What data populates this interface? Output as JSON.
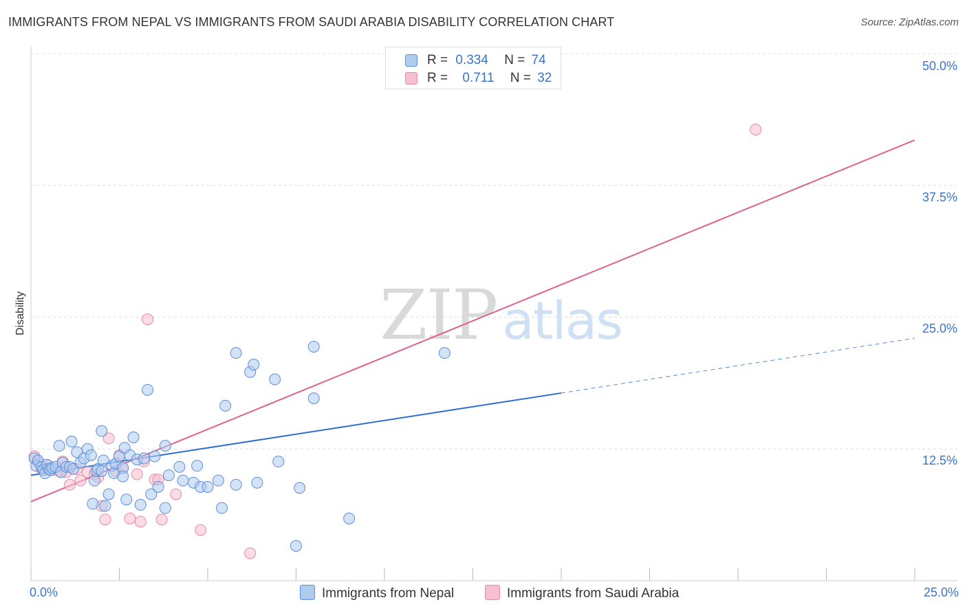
{
  "title": "IMMIGRANTS FROM NEPAL VS IMMIGRANTS FROM SAUDI ARABIA DISABILITY CORRELATION CHART",
  "source": "Source: ZipAtlas.com",
  "watermark": {
    "zip": "ZIP",
    "atlas": "atlas"
  },
  "legend": {
    "nepal": {
      "r_label": "R =",
      "r_value": "0.334",
      "n_label": "N =",
      "n_value": "74"
    },
    "saudi": {
      "r_label": "R =",
      "r_value": "0.711",
      "n_label": "N =",
      "n_value": "32"
    }
  },
  "colors": {
    "nepal_fill": "#aecbf0",
    "nepal_stroke": "#5b8fd6",
    "nepal_line": "#2a6fcf",
    "saudi_fill": "#f7c0d0",
    "saudi_stroke": "#e68aa6",
    "saudi_line": "#e0628c",
    "grid": "#dddddd",
    "tick_text": "#3a74c9"
  },
  "chart_data": {
    "type": "scatter",
    "title": "IMMIGRANTS FROM NEPAL VS IMMIGRANTS FROM SAUDI ARABIA DISABILITY CORRELATION CHART",
    "xlabel": "",
    "ylabel": "Disability",
    "xlim": [
      0,
      25
    ],
    "ylim": [
      0,
      50
    ],
    "x_tick_labels": [
      "0.0%",
      "25.0%"
    ],
    "y_ticks": [
      12.5,
      25.0,
      37.5,
      50.0
    ],
    "y_tick_labels": [
      "12.5%",
      "25.0%",
      "37.5%",
      "50.0%"
    ],
    "grid": "horizontal dashed",
    "legend_position": "bottom",
    "series": [
      {
        "name": "Immigrants from Nepal",
        "points": [
          [
            0.1,
            11.6
          ],
          [
            0.15,
            10.9
          ],
          [
            0.2,
            11.4
          ],
          [
            0.3,
            10.8
          ],
          [
            0.35,
            10.5
          ],
          [
            0.4,
            10.2
          ],
          [
            0.45,
            11.0
          ],
          [
            0.5,
            10.6
          ],
          [
            0.55,
            10.5
          ],
          [
            0.6,
            10.7
          ],
          [
            0.7,
            10.8
          ],
          [
            0.8,
            12.8
          ],
          [
            0.85,
            10.3
          ],
          [
            0.9,
            11.2
          ],
          [
            1.0,
            10.8
          ],
          [
            1.1,
            10.8
          ],
          [
            1.15,
            13.2
          ],
          [
            1.2,
            10.6
          ],
          [
            1.3,
            12.2
          ],
          [
            1.4,
            11.2
          ],
          [
            1.5,
            11.6
          ],
          [
            1.6,
            12.5
          ],
          [
            1.7,
            11.9
          ],
          [
            1.75,
            7.3
          ],
          [
            1.8,
            9.5
          ],
          [
            1.85,
            10.4
          ],
          [
            1.9,
            10.6
          ],
          [
            2.0,
            10.4
          ],
          [
            2.05,
            11.4
          ],
          [
            2.1,
            7.1
          ],
          [
            2.2,
            8.2
          ],
          [
            2.3,
            10.9
          ],
          [
            2.35,
            10.2
          ],
          [
            2.4,
            11.1
          ],
          [
            2.5,
            11.8
          ],
          [
            2.6,
            10.7
          ],
          [
            2.65,
            12.6
          ],
          [
            2.7,
            7.7
          ],
          [
            2.8,
            11.9
          ],
          [
            2.9,
            13.6
          ],
          [
            3.0,
            11.5
          ],
          [
            3.1,
            7.2
          ],
          [
            3.2,
            11.6
          ],
          [
            3.3,
            18.1
          ],
          [
            3.4,
            8.2
          ],
          [
            3.5,
            11.8
          ],
          [
            3.6,
            8.9
          ],
          [
            3.8,
            12.8
          ],
          [
            3.8,
            6.9
          ],
          [
            3.9,
            10.0
          ],
          [
            4.2,
            10.8
          ],
          [
            4.3,
            9.5
          ],
          [
            4.6,
            9.3
          ],
          [
            4.7,
            10.9
          ],
          [
            4.8,
            8.9
          ],
          [
            5.0,
            8.9
          ],
          [
            5.3,
            9.5
          ],
          [
            5.4,
            6.9
          ],
          [
            5.5,
            16.6
          ],
          [
            5.8,
            21.6
          ],
          [
            5.8,
            9.1
          ],
          [
            6.2,
            19.8
          ],
          [
            6.3,
            20.5
          ],
          [
            6.4,
            9.3
          ],
          [
            6.9,
            19.1
          ],
          [
            7.0,
            11.3
          ],
          [
            7.5,
            3.3
          ],
          [
            7.6,
            8.8
          ],
          [
            8.0,
            17.3
          ],
          [
            8.0,
            22.2
          ],
          [
            9.0,
            5.9
          ],
          [
            11.7,
            21.6
          ],
          [
            2.0,
            14.2
          ],
          [
            2.6,
            9.9
          ]
        ]
      },
      {
        "name": "Immigrants from Saudi Arabia",
        "points": [
          [
            0.1,
            11.8
          ],
          [
            0.2,
            11.2
          ],
          [
            0.3,
            10.6
          ],
          [
            0.5,
            10.9
          ],
          [
            0.6,
            10.5
          ],
          [
            0.8,
            10.4
          ],
          [
            0.9,
            11.3
          ],
          [
            1.0,
            10.3
          ],
          [
            1.1,
            9.1
          ],
          [
            1.3,
            10.6
          ],
          [
            1.4,
            9.5
          ],
          [
            1.6,
            10.3
          ],
          [
            1.8,
            10.1
          ],
          [
            1.9,
            9.8
          ],
          [
            2.0,
            7.1
          ],
          [
            2.1,
            5.8
          ],
          [
            2.2,
            13.5
          ],
          [
            2.4,
            10.4
          ],
          [
            2.5,
            11.9
          ],
          [
            2.6,
            10.7
          ],
          [
            2.8,
            5.9
          ],
          [
            3.0,
            10.1
          ],
          [
            3.1,
            5.6
          ],
          [
            3.3,
            24.8
          ],
          [
            3.5,
            9.6
          ],
          [
            3.6,
            9.6
          ],
          [
            3.7,
            5.8
          ],
          [
            4.1,
            8.2
          ],
          [
            4.8,
            4.8
          ],
          [
            6.2,
            2.6
          ],
          [
            20.5,
            42.8
          ],
          [
            3.2,
            11.3
          ]
        ]
      }
    ],
    "trend_lines": [
      {
        "series": "Immigrants from Nepal",
        "x0": 0,
        "y0": 10.0,
        "x1": 15.0,
        "y1": 17.8,
        "dashed_to_x": 25.0,
        "dashed_to_y": 23.0
      },
      {
        "series": "Immigrants from Saudi Arabia",
        "x0": 0,
        "y0": 7.5,
        "x1": 25.0,
        "y1": 41.8
      }
    ]
  }
}
